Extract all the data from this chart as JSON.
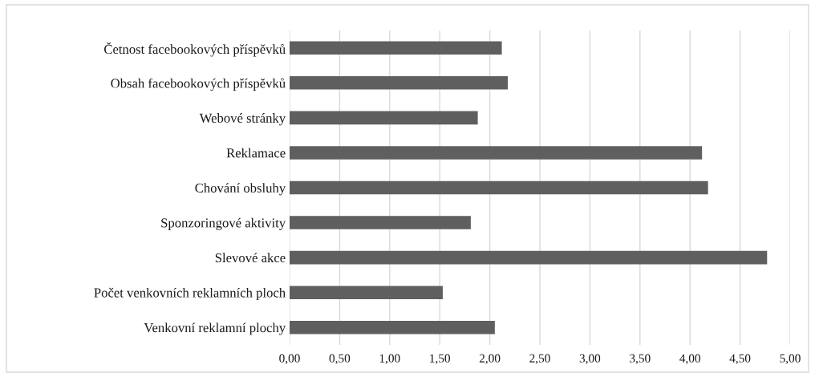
{
  "chart_data": {
    "type": "bar",
    "orientation": "horizontal",
    "categories": [
      "Četnost facebookových příspěvků",
      "Obsah facebookových příspěvků",
      "Webové stránky",
      "Reklamace",
      "Chování obsluhy",
      "Sponzoringové aktivity",
      "Slevové akce",
      "Počet venkovních reklamních ploch",
      "Venkovní reklamní plochy"
    ],
    "values": [
      2.12,
      2.18,
      1.88,
      4.12,
      4.18,
      1.81,
      4.77,
      1.53,
      2.05
    ],
    "color": "#5f5f5f",
    "xlim": [
      0,
      5
    ],
    "xticks": [
      {
        "value": 0,
        "label": "0,00"
      },
      {
        "value": 0.5,
        "label": "0,50"
      },
      {
        "value": 1,
        "label": "1,00"
      },
      {
        "value": 1.5,
        "label": "1,50"
      },
      {
        "value": 2,
        "label": "2,00"
      },
      {
        "value": 2.5,
        "label": "2,50"
      },
      {
        "value": 3,
        "label": "3,00"
      },
      {
        "value": 3.5,
        "label": "3,50"
      },
      {
        "value": 4,
        "label": "4,00"
      },
      {
        "value": 4.5,
        "label": "4,50"
      },
      {
        "value": 5,
        "label": "5,00"
      }
    ],
    "grid": "x"
  }
}
